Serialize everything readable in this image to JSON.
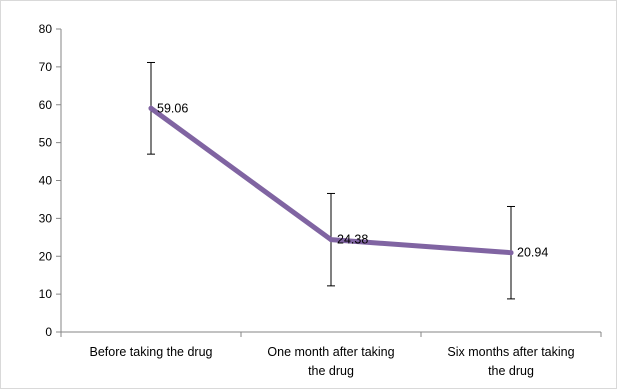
{
  "chart_data": {
    "type": "line",
    "title": "",
    "xlabel": "",
    "ylabel": "",
    "ylim": [
      0,
      80
    ],
    "yticks": [
      0,
      10,
      20,
      30,
      40,
      50,
      60,
      70,
      80
    ],
    "categories": [
      [
        "Before taking the drug"
      ],
      [
        "One month after taking",
        "the drug"
      ],
      [
        "Six months after taking",
        "the drug"
      ]
    ],
    "series": [
      {
        "values": [
          59.06,
          24.38,
          20.94
        ],
        "error": [
          12.1,
          12.2,
          12.2
        ],
        "data_labels": [
          "59.06",
          "24.38",
          "20.94"
        ],
        "color": "#8064a2"
      }
    ],
    "grid": false,
    "legend": "none"
  }
}
